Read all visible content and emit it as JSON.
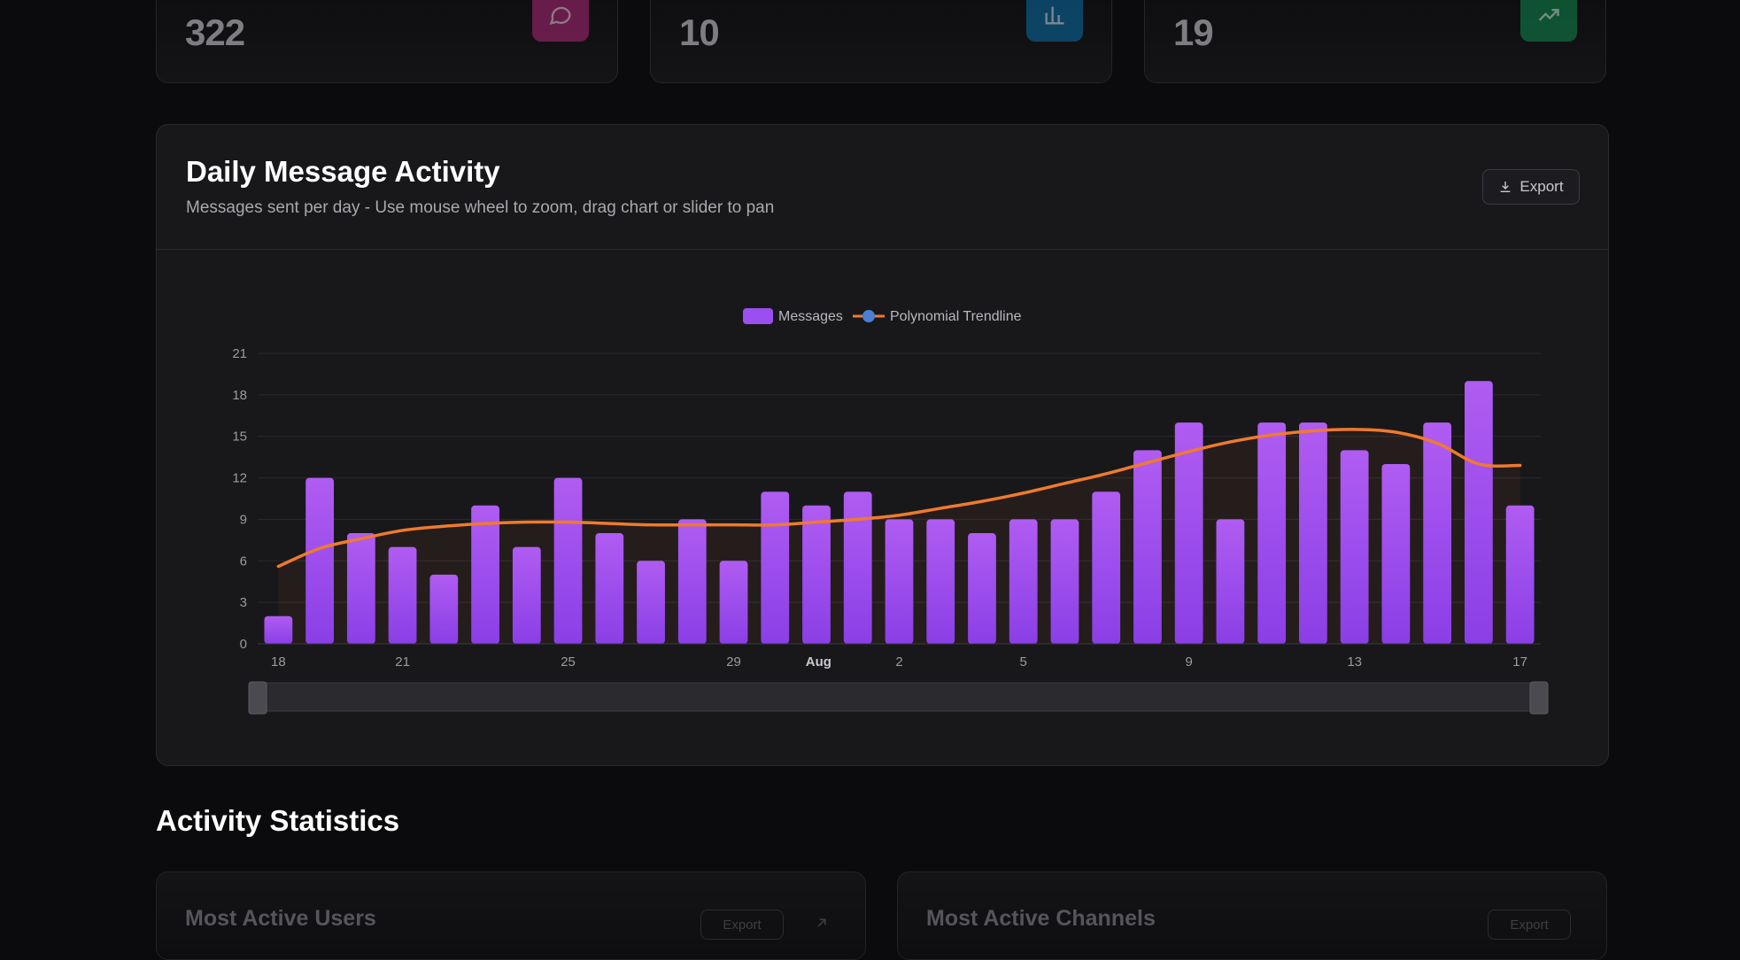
{
  "stats": [
    {
      "value": "322",
      "icon": "message-icon",
      "color": "#b0277a"
    },
    {
      "value": "10",
      "icon": "bar-chart-icon",
      "color": "#0a6fa8"
    },
    {
      "value": "19",
      "icon": "trending-up-icon",
      "color": "#0f8a4e"
    }
  ],
  "chart_panel": {
    "title": "Daily Message Activity",
    "subtitle": "Messages sent per day - Use mouse wheel to zoom, drag chart or slider to pan",
    "export_label": "Export"
  },
  "chart_data": {
    "type": "bar",
    "x": [
      "Jul 18",
      "Jul 19",
      "Jul 20",
      "Jul 21",
      "Jul 22",
      "Jul 23",
      "Jul 24",
      "Jul 25",
      "Jul 26",
      "Jul 27",
      "Jul 28",
      "Jul 29",
      "Jul 30",
      "Jul 31",
      "Aug 1",
      "Aug 2",
      "Aug 3",
      "Aug 4",
      "Aug 5",
      "Aug 6",
      "Aug 7",
      "Aug 8",
      "Aug 9",
      "Aug 10",
      "Aug 11",
      "Aug 12",
      "Aug 13",
      "Aug 14",
      "Aug 15",
      "Aug 16",
      "Aug 17"
    ],
    "series": [
      {
        "name": "Messages",
        "type": "bar",
        "color": "#a855f7",
        "values": [
          2,
          12,
          8,
          7,
          5,
          10,
          7,
          12,
          8,
          6,
          9,
          6,
          11,
          10,
          11,
          9,
          9,
          8,
          9,
          9,
          11,
          14,
          16,
          9,
          16,
          16,
          14,
          13,
          16,
          19,
          10
        ]
      },
      {
        "name": "Polynomial Trendline",
        "type": "line",
        "color": "#f07a2c",
        "values": [
          5.6,
          6.9,
          7.6,
          8.2,
          8.5,
          8.7,
          8.8,
          8.8,
          8.7,
          8.6,
          8.6,
          8.6,
          8.6,
          8.8,
          9.0,
          9.3,
          9.8,
          10.3,
          10.9,
          11.6,
          12.3,
          13.1,
          13.9,
          14.6,
          15.1,
          15.4,
          15.5,
          15.3,
          14.5,
          13.0,
          12.9
        ]
      }
    ],
    "x_tick_labels": [
      "18",
      "21",
      "25",
      "29",
      "Aug",
      "2",
      "5",
      "9",
      "13",
      "17"
    ],
    "y_ticks": [
      "0",
      "3",
      "6",
      "9",
      "12",
      "15",
      "18",
      "21"
    ],
    "ylim": [
      0,
      21
    ],
    "legend": "top-center",
    "grid": true
  },
  "section_title": "Activity Statistics",
  "bottom_cards": [
    {
      "title": "Most Active Users",
      "export_label": "Export"
    },
    {
      "title": "Most Active Channels",
      "export_label": "Export"
    }
  ]
}
